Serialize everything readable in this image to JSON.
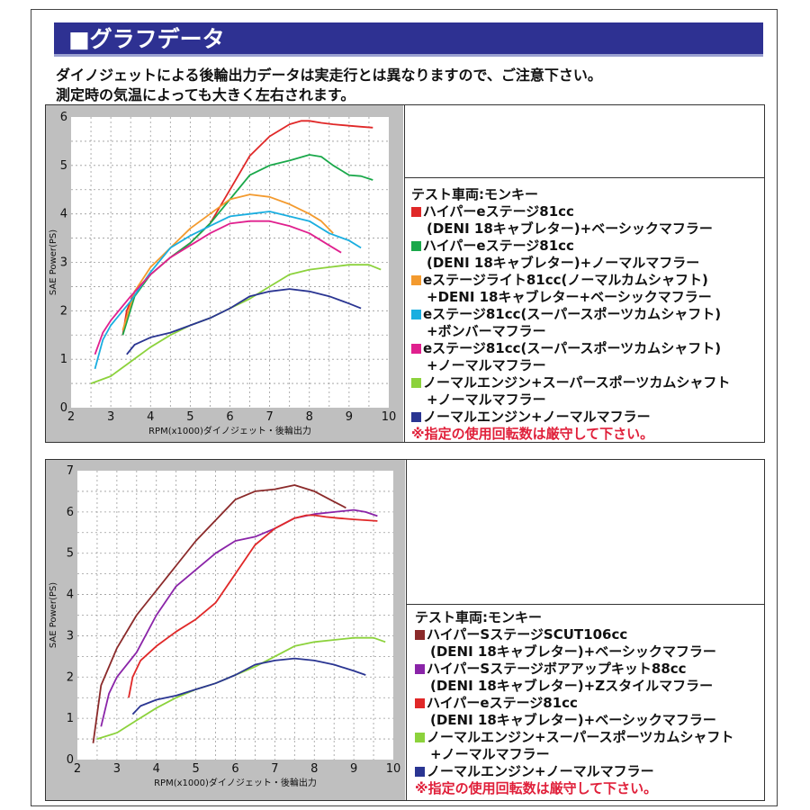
{
  "header": {
    "title": "■グラフデータ",
    "note1": "ダイノジェットによる後輪出力データは実走行とは異なりますので、ご注意下さい。",
    "note2": "測定時の気温によっても大きく左右されます。"
  },
  "legend1": {
    "vehicle": "テスト車両:モンキー",
    "items": [
      {
        "color": "#e02828",
        "line1": "ハイパーeステージ81cc",
        "line2": "(DENI 18キャブレター)+ベーシックマフラー"
      },
      {
        "color": "#1aa84a",
        "line1": "ハイパーeステージ81cc",
        "line2": "(DENI 18キャブレター)+ノーマルマフラー"
      },
      {
        "color": "#f39a2e",
        "line1": "eステージライト81cc(ノーマルカムシャフト)",
        "line2": "+DENI 18キャブレター+ベーシックマフラー"
      },
      {
        "color": "#1aaee0",
        "line1": "eステージ81cc(スーパースポーツカムシャフト)",
        "line2": "+ボンバーマフラー"
      },
      {
        "color": "#e0208e",
        "line1": "eステージ81cc(スーパースポーツカムシャフト)",
        "line2": "+ノーマルマフラー"
      },
      {
        "color": "#8cd23c",
        "line1": "ノーマルエンジン+スーパースポーツカムシャフト",
        "line2": "+ノーマルマフラー"
      },
      {
        "color": "#2a3592",
        "line1": "ノーマルエンジン+ノーマルマフラー",
        "line2": ""
      }
    ],
    "warning": "※指定の使用回転数は厳守して下さい。"
  },
  "legend2": {
    "vehicle": "テスト車両:モンキー",
    "items": [
      {
        "color": "#8b2a2a",
        "line1": "ハイパーSステージSCUT106cc",
        "line2": "(DENI 18キャブレター)+ベーシックマフラー"
      },
      {
        "color": "#8a24a8",
        "line1": "ハイパーSステージボアアップキット88cc",
        "line2": "(DENI 18キャブレター)+Zスタイルマフラー"
      },
      {
        "color": "#e02828",
        "line1": "ハイパーeステージ81cc",
        "line2": "(DENI 18キャブレター)+ベーシックマフラー"
      },
      {
        "color": "#8cd23c",
        "line1": "ノーマルエンジン+スーパースポーツカムシャフト",
        "line2": "+ノーマルマフラー"
      },
      {
        "color": "#2a3592",
        "line1": "ノーマルエンジン+ノーマルマフラー",
        "line2": ""
      }
    ],
    "warning": "※指定の使用回転数は厳守して下さい。"
  },
  "chart_data": [
    {
      "type": "line",
      "xlabel": "RPM(x1000)ダイノジェット・後輪出力",
      "ylabel": "SAE Power(PS)",
      "xlim": [
        2,
        10
      ],
      "ylim": [
        0,
        6
      ],
      "xticks": [
        "2",
        "3",
        "4",
        "5",
        "6",
        "7",
        "8",
        "9",
        "10"
      ],
      "yticks": [
        "0",
        "1",
        "2",
        "3",
        "4",
        "5",
        "6"
      ],
      "grid": true,
      "series": [
        {
          "name": "ハイパーeステージ81cc (DENI 18キャブレター)+ベーシックマフラー",
          "color": "#e02828",
          "x": [
            3.3,
            3.4,
            3.6,
            4.0,
            4.5,
            5.0,
            5.5,
            6.0,
            6.5,
            7.0,
            7.5,
            7.8,
            8.0,
            8.3,
            8.6,
            9.0,
            9.3,
            9.6
          ],
          "y": [
            1.5,
            2.0,
            2.4,
            2.75,
            3.1,
            3.4,
            3.8,
            4.5,
            5.2,
            5.6,
            5.85,
            5.92,
            5.92,
            5.88,
            5.85,
            5.82,
            5.8,
            5.78
          ]
        },
        {
          "name": "ハイパーeステージ81cc (DENI 18キャブレター)+ノーマルマフラー",
          "color": "#1aa84a",
          "x": [
            3.3,
            3.6,
            4.0,
            4.5,
            5.0,
            5.5,
            6.0,
            6.5,
            7.0,
            7.5,
            8.0,
            8.3,
            8.6,
            9.0,
            9.3,
            9.6
          ],
          "y": [
            1.5,
            2.3,
            2.75,
            3.1,
            3.4,
            3.8,
            4.3,
            4.8,
            5.0,
            5.1,
            5.22,
            5.18,
            5.0,
            4.8,
            4.78,
            4.7
          ]
        },
        {
          "name": "eステージライト81cc(ノーマルカムシャフト)+DENI 18キャブレター+ベーシックマフラー",
          "color": "#f39a2e",
          "x": [
            3.3,
            3.6,
            4.0,
            4.5,
            5.0,
            5.5,
            6.0,
            6.5,
            7.0,
            7.5,
            8.0,
            8.3,
            8.6
          ],
          "y": [
            1.6,
            2.4,
            2.9,
            3.3,
            3.7,
            4.0,
            4.3,
            4.4,
            4.35,
            4.2,
            4.0,
            3.85,
            3.6
          ]
        },
        {
          "name": "eステージ81cc(スーパースポーツカムシャフト)+ボンバーマフラー",
          "color": "#1aaee0",
          "x": [
            2.6,
            2.8,
            3.0,
            3.5,
            4.0,
            4.5,
            5.0,
            5.5,
            6.0,
            6.5,
            7.0,
            7.5,
            8.0,
            8.5,
            9.0,
            9.3
          ],
          "y": [
            0.8,
            1.4,
            1.7,
            2.2,
            2.8,
            3.3,
            3.55,
            3.75,
            3.95,
            4.0,
            4.05,
            3.95,
            3.85,
            3.6,
            3.45,
            3.3
          ]
        },
        {
          "name": "eステージ81cc(スーパースポーツカムシャフト)+ノーマルマフラー",
          "color": "#e0208e",
          "x": [
            2.6,
            2.8,
            3.0,
            3.5,
            4.0,
            4.5,
            5.0,
            5.5,
            6.0,
            6.5,
            7.0,
            7.5,
            8.0,
            8.5,
            8.8
          ],
          "y": [
            1.1,
            1.55,
            1.8,
            2.3,
            2.75,
            3.1,
            3.35,
            3.6,
            3.8,
            3.85,
            3.85,
            3.75,
            3.6,
            3.35,
            3.2
          ]
        },
        {
          "name": "ノーマルエンジン+スーパースポーツカムシャフト+ノーマルマフラー",
          "color": "#8cd23c",
          "x": [
            2.5,
            3.0,
            3.5,
            4.0,
            4.5,
            5.0,
            5.5,
            6.0,
            6.5,
            7.0,
            7.5,
            8.0,
            8.5,
            9.0,
            9.5,
            9.8
          ],
          "y": [
            0.5,
            0.65,
            0.95,
            1.25,
            1.5,
            1.7,
            1.85,
            2.05,
            2.25,
            2.5,
            2.75,
            2.85,
            2.9,
            2.95,
            2.95,
            2.85
          ]
        },
        {
          "name": "ノーマルエンジン+ノーマルマフラー",
          "color": "#2a3592",
          "x": [
            3.4,
            3.6,
            4.0,
            4.5,
            5.0,
            5.5,
            6.0,
            6.5,
            7.0,
            7.5,
            8.0,
            8.5,
            9.0,
            9.3
          ],
          "y": [
            1.1,
            1.3,
            1.45,
            1.55,
            1.7,
            1.85,
            2.05,
            2.3,
            2.4,
            2.45,
            2.4,
            2.3,
            2.15,
            2.05
          ]
        }
      ]
    },
    {
      "type": "line",
      "xlabel": "RPM(x1000)ダイノジェット・後輪出力",
      "ylabel": "SAE Power(PS)",
      "xlim": [
        2,
        10
      ],
      "ylim": [
        0,
        7
      ],
      "xticks": [
        "2",
        "3",
        "4",
        "5",
        "6",
        "7",
        "8",
        "9",
        "10"
      ],
      "yticks": [
        "0",
        "1",
        "2",
        "3",
        "4",
        "5",
        "6",
        "7"
      ],
      "grid": true,
      "series": [
        {
          "name": "ハイパーSステージSCUT106cc (DENI 18キャブレター)+ベーシックマフラー",
          "color": "#8b2a2a",
          "x": [
            2.4,
            2.6,
            3.0,
            3.5,
            4.0,
            4.5,
            5.0,
            5.5,
            6.0,
            6.5,
            7.0,
            7.5,
            8.0,
            8.5,
            8.8
          ],
          "y": [
            0.4,
            1.8,
            2.7,
            3.5,
            4.1,
            4.7,
            5.3,
            5.8,
            6.3,
            6.5,
            6.55,
            6.65,
            6.5,
            6.25,
            6.1
          ]
        },
        {
          "name": "ハイパーSステージボアアップキット88cc (DENI 18キャブレター)+Zスタイルマフラー",
          "color": "#8a24a8",
          "x": [
            2.6,
            2.8,
            3.0,
            3.5,
            4.0,
            4.5,
            5.0,
            5.5,
            6.0,
            6.5,
            7.0,
            7.5,
            8.0,
            8.5,
            9.0,
            9.3,
            9.6
          ],
          "y": [
            0.8,
            1.6,
            2.0,
            2.6,
            3.5,
            4.2,
            4.6,
            5.0,
            5.3,
            5.4,
            5.6,
            5.85,
            5.95,
            6.0,
            6.05,
            6.0,
            5.9
          ]
        },
        {
          "name": "ハイパーeステージ81cc (DENI 18キャブレター)+ベーシックマフラー",
          "color": "#e02828",
          "x": [
            3.3,
            3.4,
            3.6,
            4.0,
            4.5,
            5.0,
            5.5,
            6.0,
            6.5,
            7.0,
            7.5,
            7.8,
            8.0,
            8.3,
            8.6,
            9.0,
            9.3,
            9.6
          ],
          "y": [
            1.5,
            2.0,
            2.4,
            2.75,
            3.1,
            3.4,
            3.8,
            4.5,
            5.2,
            5.6,
            5.85,
            5.92,
            5.92,
            5.88,
            5.85,
            5.82,
            5.8,
            5.78
          ]
        },
        {
          "name": "ノーマルエンジン+スーパースポーツカムシャフト+ノーマルマフラー",
          "color": "#8cd23c",
          "x": [
            2.5,
            3.0,
            3.5,
            4.0,
            4.5,
            5.0,
            5.5,
            6.0,
            6.5,
            7.0,
            7.5,
            8.0,
            8.5,
            9.0,
            9.5,
            9.8
          ],
          "y": [
            0.5,
            0.65,
            0.95,
            1.25,
            1.5,
            1.7,
            1.85,
            2.05,
            2.25,
            2.5,
            2.75,
            2.85,
            2.9,
            2.95,
            2.95,
            2.85
          ]
        },
        {
          "name": "ノーマルエンジン+ノーマルマフラー",
          "color": "#2a3592",
          "x": [
            3.4,
            3.6,
            4.0,
            4.5,
            5.0,
            5.5,
            6.0,
            6.5,
            7.0,
            7.5,
            8.0,
            8.5,
            9.0,
            9.3
          ],
          "y": [
            1.1,
            1.3,
            1.45,
            1.55,
            1.7,
            1.85,
            2.05,
            2.3,
            2.4,
            2.45,
            2.4,
            2.3,
            2.15,
            2.05
          ]
        }
      ]
    }
  ]
}
